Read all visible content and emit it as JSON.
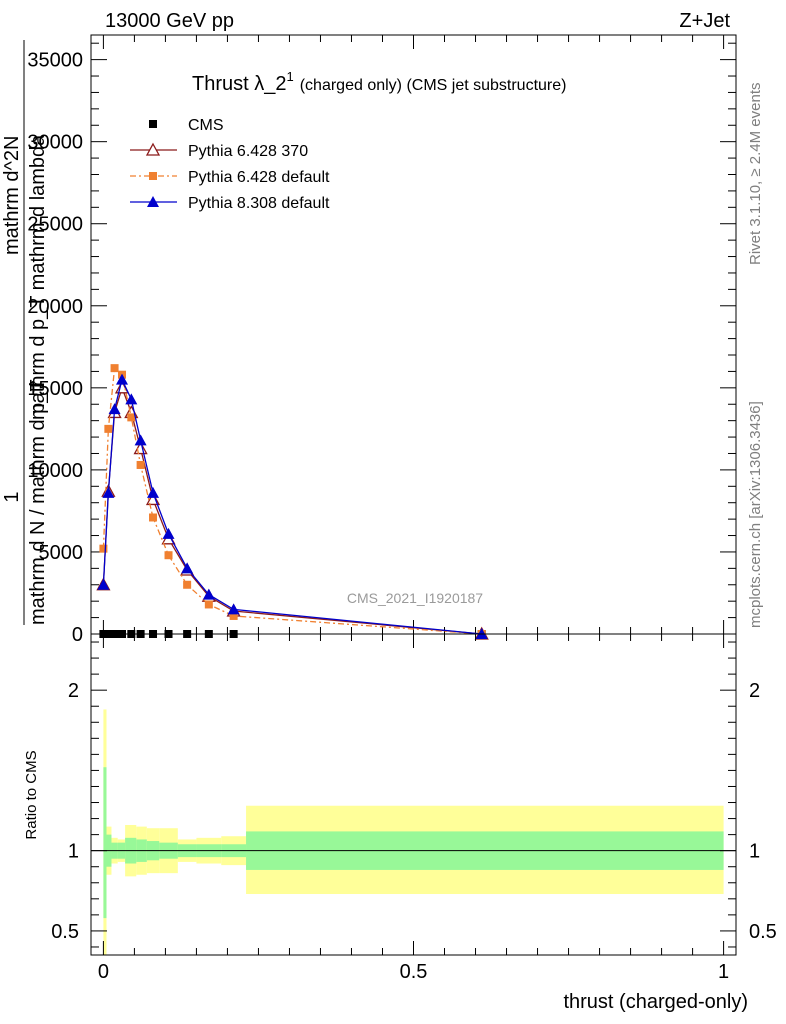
{
  "header": {
    "left": "13000 GeV pp",
    "right": "Z+Jet"
  },
  "side_text": {
    "top": "Rivet 3.1.10, ≥ 2.4M events",
    "bottom": "mcplots.cern.ch [arXiv:1306.3436]"
  },
  "watermark": "CMS_2021_I1920187",
  "chart_data": [
    {
      "type": "line",
      "title": "Thrust λ_2¹ (charged only) (CMS jet substructure)",
      "title_main": "Thrust λ_2",
      "title_sup": "1",
      "title_rest": "(charged only) (CMS jet substructure)",
      "ylabel_1": "1",
      "ylabel_2": "mathrm d N / mathrm d p_T",
      "ylabel_3": "mathrm d^2N",
      "ylabel_4": "mathrm d p_T mathrm d lambda",
      "xlabel": "",
      "xlim": [
        -0.02,
        1.02
      ],
      "ylim": [
        0,
        36500
      ],
      "yticks": [
        {
          "v": 0,
          "label": "0"
        },
        {
          "v": 5000,
          "label": "5000"
        },
        {
          "v": 10000,
          "label": "10000"
        },
        {
          "v": 15000,
          "label": "15000"
        },
        {
          "v": 20000,
          "label": "20000"
        },
        {
          "v": 25000,
          "label": "25000"
        },
        {
          "v": 30000,
          "label": "30000"
        },
        {
          "v": 35000,
          "label": "35000"
        }
      ],
      "legend": [
        {
          "label": "CMS",
          "color": "#000000",
          "marker": "square"
        },
        {
          "label": "Pythia 6.428 370",
          "color": "#8b1a1a",
          "marker": "open-triangle"
        },
        {
          "label": "Pythia 6.428 default",
          "color": "#f08030",
          "marker": "square",
          "dash": true
        },
        {
          "label": "Pythia 8.308 default",
          "color": "#0000cc",
          "marker": "triangle"
        }
      ],
      "series": [
        {
          "name": "CMS",
          "color": "#000000",
          "x": [
            0.0,
            0.01,
            0.02,
            0.03,
            0.045,
            0.06,
            0.08,
            0.105,
            0.135,
            0.17,
            0.21,
            0.61
          ],
          "values": [
            0,
            0,
            0,
            0,
            0,
            0,
            0,
            0,
            0,
            0,
            0,
            0
          ]
        },
        {
          "name": "Pythia 6.428 370",
          "color": "#8b1a1a",
          "x": [
            0.0,
            0.008,
            0.018,
            0.03,
            0.045,
            0.06,
            0.08,
            0.105,
            0.135,
            0.17,
            0.21,
            0.61
          ],
          "values": [
            3000,
            8700,
            13500,
            15000,
            13500,
            11300,
            8200,
            5800,
            3900,
            2300,
            1400,
            0
          ]
        },
        {
          "name": "Pythia 6.428 default",
          "color": "#f08030",
          "x": [
            0.0,
            0.008,
            0.018,
            0.03,
            0.045,
            0.06,
            0.08,
            0.105,
            0.135,
            0.17,
            0.21,
            0.61
          ],
          "values": [
            5200,
            12500,
            16200,
            15800,
            13200,
            10300,
            7100,
            4800,
            3000,
            1800,
            1100,
            0
          ]
        },
        {
          "name": "Pythia 8.308 default",
          "color": "#0000cc",
          "x": [
            0.0,
            0.008,
            0.018,
            0.03,
            0.045,
            0.06,
            0.08,
            0.105,
            0.135,
            0.17,
            0.21,
            0.61
          ],
          "values": [
            3000,
            8600,
            13700,
            15500,
            14300,
            11800,
            8600,
            6100,
            4000,
            2400,
            1500,
            0
          ]
        }
      ]
    },
    {
      "type": "area",
      "ylabel": "Ratio to CMS",
      "xlabel": "thrust (charged-only)",
      "xlim": [
        -0.02,
        1.02
      ],
      "ylim": [
        0.35,
        2.35
      ],
      "xticks": [
        {
          "v": 0,
          "label": "0"
        },
        {
          "v": 0.5,
          "label": "0.5"
        },
        {
          "v": 1,
          "label": "1"
        }
      ],
      "yticks": [
        {
          "v": 0.5,
          "label": "0.5"
        },
        {
          "v": 1,
          "label": "1"
        },
        {
          "v": 2,
          "label": "2"
        }
      ],
      "bands": [
        {
          "x0": 0.0,
          "x1": 0.005,
          "stat_lo": 0.58,
          "stat_hi": 1.52,
          "tot_lo": 0.35,
          "tot_hi": 1.88
        },
        {
          "x0": 0.005,
          "x1": 0.013,
          "stat_lo": 0.9,
          "stat_hi": 1.1,
          "tot_lo": 0.85,
          "tot_hi": 1.15
        },
        {
          "x0": 0.013,
          "x1": 0.023,
          "stat_lo": 0.95,
          "stat_hi": 1.05,
          "tot_lo": 0.92,
          "tot_hi": 1.08
        },
        {
          "x0": 0.023,
          "x1": 0.035,
          "stat_lo": 0.95,
          "stat_hi": 1.05,
          "tot_lo": 0.93,
          "tot_hi": 1.07
        },
        {
          "x0": 0.035,
          "x1": 0.053,
          "stat_lo": 0.92,
          "stat_hi": 1.08,
          "tot_lo": 0.84,
          "tot_hi": 1.16
        },
        {
          "x0": 0.053,
          "x1": 0.07,
          "stat_lo": 0.93,
          "stat_hi": 1.07,
          "tot_lo": 0.85,
          "tot_hi": 1.15
        },
        {
          "x0": 0.07,
          "x1": 0.09,
          "stat_lo": 0.94,
          "stat_hi": 1.06,
          "tot_lo": 0.86,
          "tot_hi": 1.14
        },
        {
          "x0": 0.09,
          "x1": 0.12,
          "stat_lo": 0.95,
          "stat_hi": 1.05,
          "tot_lo": 0.86,
          "tot_hi": 1.14
        },
        {
          "x0": 0.12,
          "x1": 0.15,
          "stat_lo": 0.96,
          "stat_hi": 1.04,
          "tot_lo": 0.93,
          "tot_hi": 1.07
        },
        {
          "x0": 0.15,
          "x1": 0.19,
          "stat_lo": 0.96,
          "stat_hi": 1.04,
          "tot_lo": 0.92,
          "tot_hi": 1.08
        },
        {
          "x0": 0.19,
          "x1": 0.23,
          "stat_lo": 0.96,
          "stat_hi": 1.04,
          "tot_lo": 0.91,
          "tot_hi": 1.09
        },
        {
          "x0": 0.23,
          "x1": 1.0,
          "stat_lo": 0.88,
          "stat_hi": 1.12,
          "tot_lo": 0.73,
          "tot_hi": 1.28
        }
      ],
      "band_colors": {
        "stat": "#98f898",
        "total": "#ffff99"
      },
      "reference": 1
    }
  ]
}
